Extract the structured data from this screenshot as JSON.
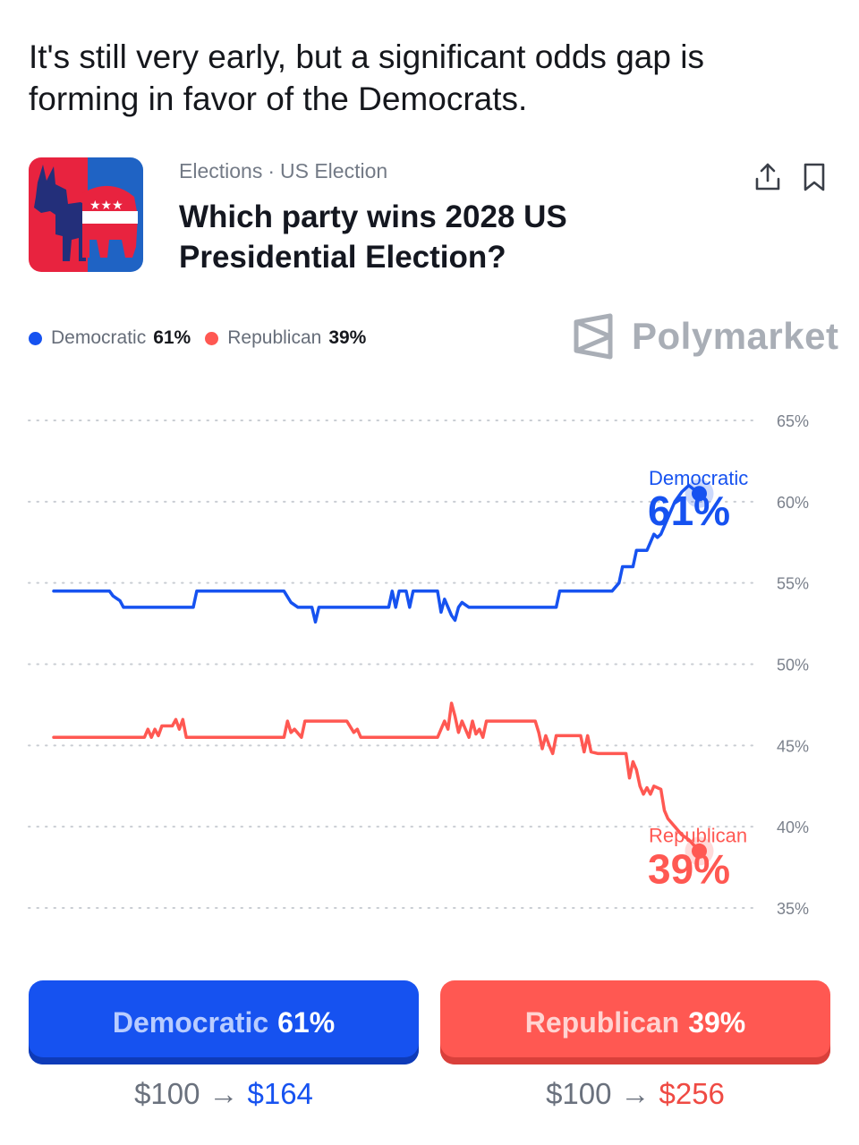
{
  "intro": "It's still very early, but a significant odds gap is forming in favor of the Democrats.",
  "market": {
    "breadcrumb": [
      "Elections",
      "US Election"
    ],
    "separator": "·",
    "title": "Which party wins 2028 US Presidential Election?",
    "icon": "donkey-elephant-icon"
  },
  "actions": {
    "share_icon": "share-icon",
    "bookmark_icon": "bookmark-icon"
  },
  "legend": [
    {
      "label": "Democratic",
      "value": "61%",
      "color": "#1652f0"
    },
    {
      "label": "Republican",
      "value": "39%",
      "color": "#ff5852"
    }
  ],
  "brand": {
    "name": "Polymarket",
    "icon": "polymarket-logo-icon",
    "color": "#a9aeb6"
  },
  "chart_data": {
    "type": "line",
    "y_ticks": [
      "65%",
      "60%",
      "55%",
      "50%",
      "45%",
      "40%",
      "35%"
    ],
    "ylim": [
      35,
      65
    ],
    "grid": "dotted horizontal",
    "series": [
      {
        "name": "Democratic",
        "end_label": "61%",
        "color": "#1652f0",
        "points": [
          [
            0,
            54.5
          ],
          [
            4,
            54.5
          ],
          [
            8,
            54.5
          ],
          [
            8.5,
            54.2
          ],
          [
            9.5,
            53.9
          ],
          [
            10,
            53.5
          ],
          [
            20,
            53.5
          ],
          [
            20.5,
            54.5
          ],
          [
            33,
            54.5
          ],
          [
            34,
            53.8
          ],
          [
            35,
            53.5
          ],
          [
            37,
            53.5
          ],
          [
            37.5,
            52.6
          ],
          [
            38,
            53.5
          ],
          [
            48,
            53.5
          ],
          [
            48.5,
            54.5
          ],
          [
            49,
            53.5
          ],
          [
            49.5,
            54.5
          ],
          [
            50.5,
            54.5
          ],
          [
            51,
            53.5
          ],
          [
            51.5,
            54.5
          ],
          [
            55,
            54.5
          ],
          [
            55.5,
            53.2
          ],
          [
            56,
            54.0
          ],
          [
            57,
            53.0
          ],
          [
            57.5,
            52.7
          ],
          [
            58,
            53.5
          ],
          [
            58.5,
            53.8
          ],
          [
            59.5,
            53.5
          ],
          [
            72,
            53.5
          ],
          [
            72.5,
            54.5
          ],
          [
            80,
            54.5
          ],
          [
            81,
            55.0
          ],
          [
            81.5,
            56.0
          ],
          [
            83,
            56.0
          ],
          [
            83.5,
            57.0
          ],
          [
            85,
            57.0
          ],
          [
            85.5,
            57.5
          ],
          [
            86,
            58.0
          ],
          [
            86.5,
            57.8
          ],
          [
            87,
            58.0
          ],
          [
            88,
            59.0
          ],
          [
            89,
            60.0
          ],
          [
            90,
            60.6
          ],
          [
            91,
            61.0
          ],
          [
            92.5,
            60.5
          ]
        ]
      },
      {
        "name": "Republican",
        "end_label": "39%",
        "color": "#ff5852",
        "points": [
          [
            0,
            45.5
          ],
          [
            13,
            45.5
          ],
          [
            13.5,
            46.0
          ],
          [
            14,
            45.5
          ],
          [
            14.5,
            46.0
          ],
          [
            15,
            45.6
          ],
          [
            15.5,
            46.2
          ],
          [
            17,
            46.2
          ],
          [
            17.5,
            46.6
          ],
          [
            18,
            46.0
          ],
          [
            18.5,
            46.6
          ],
          [
            19,
            45.5
          ],
          [
            33,
            45.5
          ],
          [
            33.5,
            46.5
          ],
          [
            34,
            45.8
          ],
          [
            34.5,
            46.0
          ],
          [
            35.5,
            45.5
          ],
          [
            36,
            46.5
          ],
          [
            42,
            46.5
          ],
          [
            43,
            45.8
          ],
          [
            43.5,
            46.0
          ],
          [
            44,
            45.5
          ],
          [
            55,
            45.5
          ],
          [
            56,
            46.5
          ],
          [
            56.5,
            46.0
          ],
          [
            57,
            47.6
          ],
          [
            57.5,
            46.8
          ],
          [
            58,
            45.8
          ],
          [
            58.5,
            46.5
          ],
          [
            59.5,
            45.5
          ],
          [
            60,
            46.5
          ],
          [
            60.5,
            45.7
          ],
          [
            61,
            46.0
          ],
          [
            61.5,
            45.5
          ],
          [
            62,
            46.5
          ],
          [
            69,
            46.5
          ],
          [
            69.5,
            45.8
          ],
          [
            70,
            44.8
          ],
          [
            70.5,
            45.6
          ],
          [
            71,
            45.0
          ],
          [
            71.5,
            44.5
          ],
          [
            72,
            45.6
          ],
          [
            75.5,
            45.6
          ],
          [
            76,
            44.6
          ],
          [
            76.5,
            45.6
          ],
          [
            77,
            44.6
          ],
          [
            78,
            44.5
          ],
          [
            82,
            44.5
          ],
          [
            82.5,
            43.0
          ],
          [
            83,
            44.0
          ],
          [
            83.5,
            43.5
          ],
          [
            84,
            42.5
          ],
          [
            84.5,
            42.0
          ],
          [
            85,
            42.4
          ],
          [
            85.5,
            42.0
          ],
          [
            86,
            42.5
          ],
          [
            87,
            42.3
          ],
          [
            87.5,
            41.0
          ],
          [
            88,
            40.5
          ],
          [
            89,
            40.0
          ],
          [
            90,
            39.5
          ],
          [
            91,
            39.2
          ],
          [
            92.5,
            38.5
          ]
        ]
      }
    ]
  },
  "buttons": [
    {
      "label": "Democratic",
      "value": "61%",
      "color": "#1652f0"
    },
    {
      "label": "Republican",
      "value": "39%",
      "color": "#ff5852"
    }
  ],
  "payouts": [
    {
      "from": "$100",
      "arrow": "→",
      "to": "$164"
    },
    {
      "from": "$100",
      "arrow": "→",
      "to": "$256"
    }
  ]
}
